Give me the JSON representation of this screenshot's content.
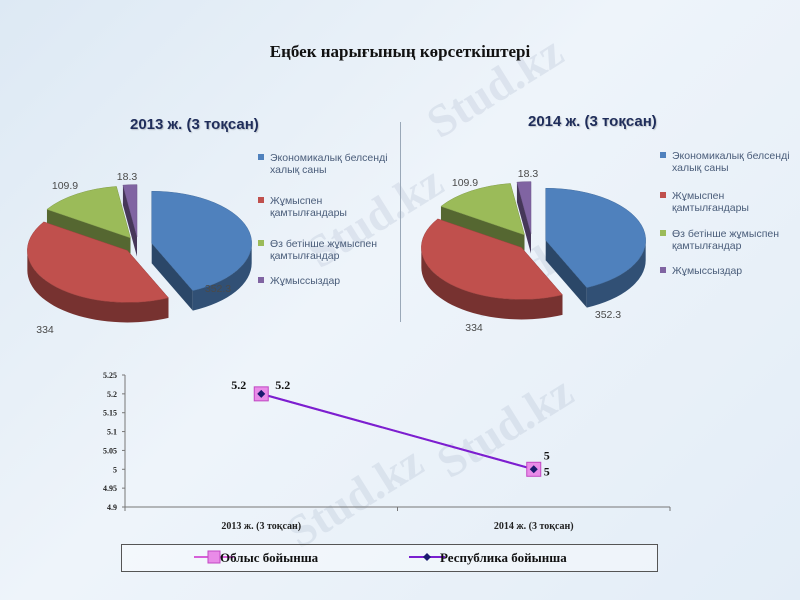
{
  "page": {
    "title": "Еңбек нарығының көрсеткіштері",
    "watermark": "Stud.kz"
  },
  "colors": {
    "blue": "#4f81bd",
    "red": "#c0504d",
    "green": "#9bbb59",
    "purple": "#8064a2",
    "line_oblys": "#d660d8",
    "line_respublika": "#7a1fd0"
  },
  "chart_data": [
    {
      "type": "pie",
      "title": "2013 ж. (3 тоқсан)",
      "labels": [
        "Экономикалық белсенді халық саны",
        "Жұмыспен қамтылғандары",
        "Өз бетінше жұмыспен қамтылғандар",
        "Жұмыссыздар"
      ],
      "values": [
        352.3,
        334,
        109.9,
        18.3
      ],
      "value_labels": [
        "352.3",
        "334",
        "109.9",
        "18.3"
      ],
      "legend": "right"
    },
    {
      "type": "pie",
      "title": "2014 ж. (3 тоқсан)",
      "labels": [
        "Экономикалық белсенді халық саны",
        "Жұмыспен қамтылғандары",
        "Өз бетінше жұмыспен қамтылғандар",
        "Жұмыссыздар"
      ],
      "values": [
        352.3,
        334,
        109.9,
        18.3
      ],
      "value_labels": [
        "352.3",
        "334",
        "109.9",
        "18.3"
      ],
      "legend": "right"
    },
    {
      "type": "line",
      "categories": [
        "2013 ж. (3 тоқсан)",
        "2014 ж. (3 тоқсан)"
      ],
      "series": [
        {
          "name": "Облыс бойынша",
          "values": [
            5.2,
            5
          ],
          "value_labels": [
            "5.2",
            "5"
          ]
        },
        {
          "name": "Республика бойынша",
          "values": [
            5.2,
            5
          ],
          "value_labels": [
            "5.2",
            "5"
          ]
        }
      ],
      "ylim": [
        4.9,
        5.25
      ],
      "yticks": [
        "4.9",
        "4.95",
        "5",
        "5.05",
        "5.1",
        "5.15",
        "5.2",
        "5.25"
      ],
      "legend": "bottom"
    }
  ]
}
